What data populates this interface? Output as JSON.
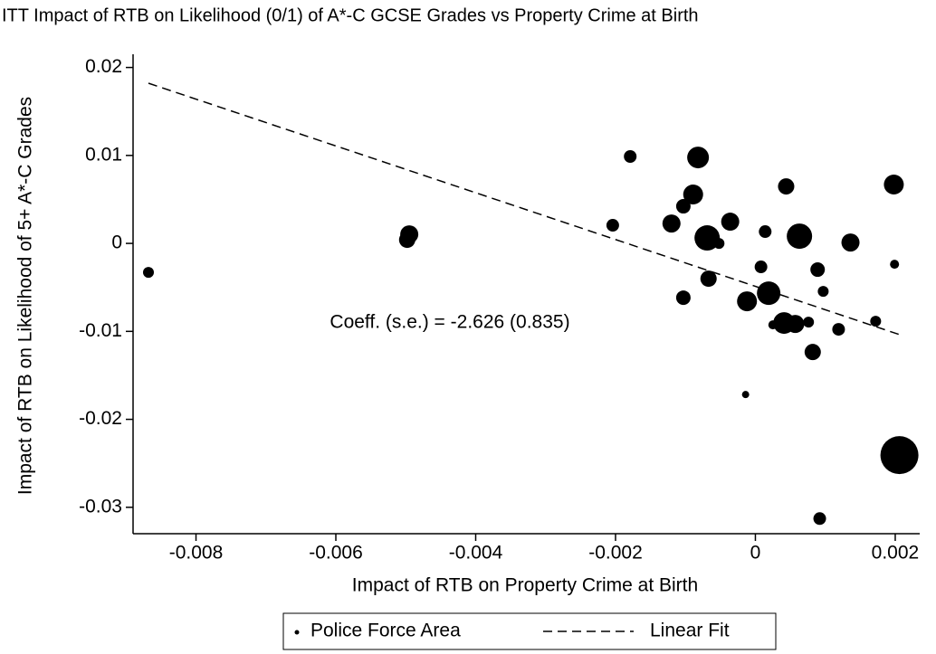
{
  "chart_data": {
    "type": "scatter",
    "title": "ITT Impact of RTB on Likelihood (0/1) of A*-C GCSE Grades vs Property Crime at Birth",
    "xlabel": "Impact of RTB on Property Crime at Birth",
    "ylabel": "Impact of RTB on Likelihood of 5+ A*-C Grades",
    "annotation": "Coeff. (s.e.) = -2.626 (0.835)",
    "xlim": [
      -0.0089,
      0.00235
    ],
    "ylim": [
      -0.033,
      0.0215
    ],
    "xticks": [
      -0.008,
      -0.006,
      -0.004,
      -0.002,
      0,
      0.002
    ],
    "yticks": [
      -0.03,
      -0.02,
      -0.01,
      0,
      0.01,
      0.02
    ],
    "grid": false,
    "legend": "bottom",
    "series": [
      {
        "name": "Police Force Area",
        "type": "scatter",
        "color": "#000000",
        "x": [
          -0.00868,
          -0.00495,
          -0.00498,
          -0.00204,
          -0.00179,
          -0.00082,
          -0.00089,
          -0.00103,
          -0.0012,
          -0.00069,
          -0.00052,
          -0.00036,
          -0.00103,
          -0.00067,
          -0.00012,
          0.00019,
          8e-05,
          0.00014,
          0.00044,
          0.00063,
          0.00041,
          0.00057,
          0.00025,
          0.00076,
          0.00089,
          0.00097,
          0.00082,
          0.00119,
          0.00136,
          0.00172,
          0.00198,
          0.00199,
          -0.00014,
          0.00092,
          0.00206
        ],
        "values": [
          -0.00329,
          0.00103,
          0.00041,
          0.00206,
          0.00988,
          0.00977,
          0.00556,
          0.00422,
          0.00226,
          0.00062,
          0,
          0.00247,
          -0.00617,
          -0.00401,
          -0.00658,
          -0.00566,
          -0.00267,
          0.00134,
          0.00648,
          0.00082,
          -0.00905,
          -0.00916,
          -0.00926,
          -0.00895,
          -0.00298,
          -0.00545,
          -0.01235,
          -0.00977,
          0.0001,
          -0.00885,
          0.00669,
          -0.00237,
          -0.01718,
          -0.03128,
          -0.02407
        ],
        "sizes": [
          6,
          10,
          9,
          7,
          7,
          12,
          11,
          8,
          10,
          14,
          6,
          10,
          8,
          9,
          11,
          13,
          7,
          7,
          9,
          14,
          12,
          10,
          5,
          6,
          8,
          6,
          9,
          7,
          10,
          6,
          11,
          5,
          4,
          7,
          21
        ]
      },
      {
        "name": "Linear Fit",
        "type": "line",
        "color": "#000000",
        "x": [
          -0.00868,
          0.00207
        ],
        "values": [
          0.01821,
          -0.01039
        ]
      }
    ]
  }
}
